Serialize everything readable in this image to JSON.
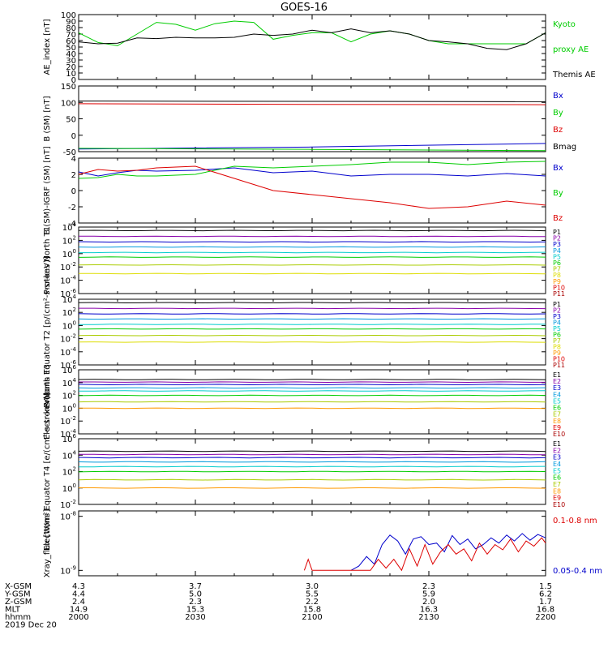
{
  "title": "GOES-16",
  "footer": {
    "rows": [
      {
        "label": "X-GSM",
        "values": [
          "4.3",
          "3.7",
          "3.0",
          "2.3",
          "1.5"
        ]
      },
      {
        "label": "Y-GSM",
        "values": [
          "4.4",
          "5.0",
          "5.5",
          "5.9",
          "6.2"
        ]
      },
      {
        "label": "Z-GSM",
        "values": [
          "2.4",
          "2.3",
          "2.2",
          "2.0",
          "1.7"
        ]
      },
      {
        "label": "MLT",
        "values": [
          "14.9",
          "15.3",
          "15.8",
          "16.3",
          "16.8"
        ]
      },
      {
        "label": "hhmm",
        "values": [
          "2000",
          "2030",
          "2100",
          "2130",
          "2200"
        ]
      }
    ],
    "date": "2019 Dec 20"
  },
  "colors": {
    "black": "#000000",
    "green": "#00cc00",
    "blue": "#0000cc",
    "red": "#dd0000"
  },
  "chart_data": [
    {
      "type": "line",
      "ylabel": "AE_index [nT]",
      "ylim": [
        0,
        100
      ],
      "yticks": [
        "0",
        "10",
        "20",
        "30",
        "40",
        "50",
        "60",
        "70",
        "80",
        "90",
        "100"
      ],
      "legend": [
        {
          "text": "Kyoto",
          "color": "#00cc00"
        },
        {
          "text": "proxy AE",
          "color": "#00cc00"
        },
        {
          "text": "Themis AE",
          "color": "#000000"
        }
      ],
      "series": [
        {
          "name": "Kyoto proxy AE",
          "color": "#00cc00",
          "x": [
            0,
            5,
            10,
            15,
            20,
            25,
            30,
            35,
            40,
            45,
            50,
            55,
            60,
            65,
            70,
            75,
            80,
            85,
            90,
            95,
            100,
            105,
            110,
            115,
            120
          ],
          "y": [
            72,
            57,
            52,
            70,
            88,
            85,
            76,
            86,
            90,
            88,
            62,
            68,
            72,
            72,
            58,
            70,
            75,
            70,
            60,
            55,
            55,
            55,
            55,
            55,
            72
          ]
        },
        {
          "name": "Themis AE",
          "color": "#000000",
          "x": [
            0,
            5,
            10,
            15,
            20,
            25,
            30,
            35,
            40,
            45,
            50,
            55,
            60,
            65,
            70,
            75,
            80,
            85,
            90,
            95,
            100,
            105,
            110,
            115,
            120
          ],
          "y": [
            58,
            55,
            56,
            64,
            63,
            65,
            64,
            64,
            65,
            70,
            68,
            70,
            76,
            72,
            78,
            72,
            75,
            70,
            60,
            58,
            55,
            48,
            46,
            55,
            72
          ]
        }
      ]
    },
    {
      "type": "line",
      "ylabel": "B (SM) [nT]",
      "ylim": [
        -50,
        150
      ],
      "yticks": [
        "-50",
        "0",
        "50",
        "100",
        "150"
      ],
      "legend": [
        {
          "text": "Bx",
          "color": "#0000cc"
        },
        {
          "text": "By",
          "color": "#00cc00"
        },
        {
          "text": "Bz",
          "color": "#dd0000"
        },
        {
          "text": "Bmag",
          "color": "#000000"
        }
      ],
      "series": [
        {
          "name": "Bmag",
          "color": "#000000",
          "x": [
            0,
            60,
            120
          ],
          "y": [
            104,
            103,
            102
          ]
        },
        {
          "name": "Bz",
          "color": "#dd0000",
          "x": [
            0,
            60,
            120
          ],
          "y": [
            96,
            94,
            93
          ]
        },
        {
          "name": "Bx",
          "color": "#0000cc",
          "x": [
            0,
            60,
            120
          ],
          "y": [
            -42,
            -36,
            -25
          ]
        },
        {
          "name": "By",
          "color": "#00cc00",
          "x": [
            0,
            60,
            120
          ],
          "y": [
            -40,
            -43,
            -47
          ]
        }
      ]
    },
    {
      "type": "line",
      "ylabel": "B (SM)-IGRF (SM) [nT]",
      "ylim": [
        -4,
        4
      ],
      "yticks": [
        "-4",
        "-2",
        "0",
        "2",
        "4"
      ],
      "legend": [
        {
          "text": "Bx",
          "color": "#0000cc"
        },
        {
          "text": "By",
          "color": "#00cc00"
        },
        {
          "text": "Bz",
          "color": "#dd0000"
        }
      ],
      "series": [
        {
          "name": "Bx",
          "color": "#0000cc",
          "x": [
            0,
            5,
            10,
            15,
            20,
            30,
            40,
            50,
            60,
            70,
            80,
            90,
            100,
            110,
            120
          ],
          "y": [
            2.3,
            1.8,
            2.2,
            2.5,
            2.4,
            2.5,
            2.8,
            2.2,
            2.4,
            1.8,
            2.0,
            2.0,
            1.8,
            2.1,
            1.8
          ]
        },
        {
          "name": "By",
          "color": "#00cc00",
          "x": [
            0,
            5,
            10,
            15,
            20,
            30,
            40,
            50,
            60,
            70,
            80,
            90,
            100,
            110,
            120
          ],
          "y": [
            1.5,
            1.6,
            2.0,
            1.8,
            1.8,
            2.0,
            3.0,
            2.8,
            3.0,
            3.2,
            3.5,
            3.5,
            3.2,
            3.5,
            3.6
          ]
        },
        {
          "name": "Bz",
          "color": "#dd0000",
          "x": [
            0,
            5,
            10,
            15,
            20,
            30,
            40,
            50,
            60,
            70,
            80,
            90,
            100,
            110,
            120
          ],
          "y": [
            2.0,
            2.6,
            2.4,
            2.5,
            2.8,
            3.0,
            1.5,
            0.0,
            -0.5,
            -1.0,
            -1.5,
            -2.2,
            -2.0,
            -1.3,
            -1.8
          ]
        }
      ]
    },
    {
      "type": "line",
      "ylabel": "Protons North T1",
      "yscale": "log",
      "yticks": [
        "10^-6",
        "10^-4",
        "10^-2",
        "10^0",
        "10^2",
        "10^4"
      ],
      "legend": [
        {
          "text": "P1",
          "color": "#000000"
        },
        {
          "text": "P2",
          "color": "#8800aa"
        },
        {
          "text": "P3",
          "color": "#0000cc"
        },
        {
          "text": "P4",
          "color": "#0099dd"
        },
        {
          "text": "P5",
          "color": "#00cccc"
        },
        {
          "text": "P6",
          "color": "#00cc00"
        },
        {
          "text": "P7",
          "color": "#aacc00"
        },
        {
          "text": "P8",
          "color": "#dddd00"
        },
        {
          "text": "P9",
          "color": "#ff9900"
        },
        {
          "text": "P10",
          "color": "#dd0000"
        },
        {
          "text": "P11",
          "color": "#aa0000"
        }
      ],
      "series": [
        {
          "name": "P1",
          "color": "#000000",
          "level": 3000
        },
        {
          "name": "P2",
          "color": "#8800aa",
          "level": 400
        },
        {
          "name": "P3",
          "color": "#0000cc",
          "level": 60
        },
        {
          "name": "P4",
          "color": "#0099dd",
          "level": 10
        },
        {
          "name": "P5",
          "color": "#00cccc",
          "level": 1.5
        },
        {
          "name": "P6",
          "color": "#00cc00",
          "level": 0.3
        },
        {
          "name": "P7",
          "color": "#aacc00",
          "level": 0.02
        },
        {
          "name": "P8",
          "color": "#dddd00",
          "level": 0.001
        }
      ]
    },
    {
      "type": "line",
      "ylabel": "Protons Equator T2 [p/(cm²-s-sr-keV)]",
      "yscale": "log",
      "yticks": [
        "10^-6",
        "10^-4",
        "10^-2",
        "10^0",
        "10^2",
        "10^4"
      ],
      "legend": [
        {
          "text": "P1",
          "color": "#000000"
        },
        {
          "text": "P2",
          "color": "#8800aa"
        },
        {
          "text": "P3",
          "color": "#0000cc"
        },
        {
          "text": "P4",
          "color": "#0099dd"
        },
        {
          "text": "P5",
          "color": "#00cccc"
        },
        {
          "text": "P6",
          "color": "#00cc00"
        },
        {
          "text": "P7",
          "color": "#aacc00"
        },
        {
          "text": "P8",
          "color": "#dddd00"
        },
        {
          "text": "P9",
          "color": "#ff9900"
        },
        {
          "text": "P10",
          "color": "#dd0000"
        },
        {
          "text": "P11",
          "color": "#aa0000"
        }
      ],
      "series": [
        {
          "name": "P1",
          "color": "#000000",
          "level": 3000
        },
        {
          "name": "P2",
          "color": "#8800aa",
          "level": 400
        },
        {
          "name": "P3",
          "color": "#0000cc",
          "level": 60
        },
        {
          "name": "P4",
          "color": "#0099dd",
          "level": 10
        },
        {
          "name": "P5",
          "color": "#00cccc",
          "level": 1.5
        },
        {
          "name": "P6",
          "color": "#00cc00",
          "level": 0.3
        },
        {
          "name": "P7",
          "color": "#aacc00",
          "level": 0.03
        },
        {
          "name": "P8",
          "color": "#dddd00",
          "level": 0.003
        }
      ]
    },
    {
      "type": "line",
      "ylabel": "Electrons North T3",
      "yscale": "log",
      "yticks": [
        "10^-4",
        "10^-2",
        "10^0",
        "10^2",
        "10^4",
        "10^6"
      ],
      "legend": [
        {
          "text": "E1",
          "color": "#000000"
        },
        {
          "text": "E2",
          "color": "#8800aa"
        },
        {
          "text": "E3",
          "color": "#0000cc"
        },
        {
          "text": "E4",
          "color": "#0099dd"
        },
        {
          "text": "E5",
          "color": "#00cccc"
        },
        {
          "text": "E6",
          "color": "#00cc00"
        },
        {
          "text": "E7",
          "color": "#aacc00"
        },
        {
          "text": "E8",
          "color": "#ff9900"
        },
        {
          "text": "E9",
          "color": "#dd0000"
        },
        {
          "text": "E10",
          "color": "#aa0000"
        }
      ],
      "series": [
        {
          "name": "E1",
          "color": "#000000",
          "level": 30000
        },
        {
          "name": "E2",
          "color": "#8800aa",
          "level": 12000
        },
        {
          "name": "E3",
          "color": "#0000cc",
          "level": 5000
        },
        {
          "name": "E4",
          "color": "#0099dd",
          "level": 1500
        },
        {
          "name": "E5",
          "color": "#00cccc",
          "level": 500
        },
        {
          "name": "E6",
          "color": "#00cc00",
          "level": 100
        },
        {
          "name": "E7",
          "color": "#aacc00",
          "level": 10
        },
        {
          "name": "E8",
          "color": "#ff9900",
          "level": 1
        }
      ]
    },
    {
      "type": "line",
      "ylabel": "Electrons Equator T4 [e/(cm²-s-sr-keV)]",
      "yscale": "log",
      "yticks": [
        "10^-2",
        "10^0",
        "10^2",
        "10^4",
        "10^6"
      ],
      "legend": [
        {
          "text": "E1",
          "color": "#000000"
        },
        {
          "text": "E2",
          "color": "#8800aa"
        },
        {
          "text": "E3",
          "color": "#0000cc"
        },
        {
          "text": "E4",
          "color": "#0099dd"
        },
        {
          "text": "E5",
          "color": "#00cccc"
        },
        {
          "text": "E6",
          "color": "#00cc00"
        },
        {
          "text": "E7",
          "color": "#aacc00"
        },
        {
          "text": "E8",
          "color": "#ff9900"
        },
        {
          "text": "E9",
          "color": "#dd0000"
        },
        {
          "text": "E10",
          "color": "#aa0000"
        }
      ],
      "series": [
        {
          "name": "E1",
          "color": "#000000",
          "level": 30000
        },
        {
          "name": "E2",
          "color": "#8800aa",
          "level": 12000
        },
        {
          "name": "E3",
          "color": "#0000cc",
          "level": 5000
        },
        {
          "name": "E4",
          "color": "#0099dd",
          "level": 1500
        },
        {
          "name": "E5",
          "color": "#00cccc",
          "level": 400
        },
        {
          "name": "E6",
          "color": "#00cc00",
          "level": 100
        },
        {
          "name": "E7",
          "color": "#aacc00",
          "level": 10
        },
        {
          "name": "E8",
          "color": "#ff9900",
          "level": 1
        }
      ]
    },
    {
      "type": "line",
      "ylabel": "Xray_flux [W/m²]",
      "yscale": "log",
      "yticks": [
        "10^-9",
        "10^-8"
      ],
      "legend": [
        {
          "text": "0.1-0.8 nm",
          "color": "#dd0000"
        },
        {
          "text": "0.05-0.4 nm",
          "color": "#0000cc"
        }
      ],
      "series": [
        {
          "name": "0.05-0.4 nm",
          "color": "#0000cc",
          "x": [
            70,
            72,
            74,
            76,
            78,
            80,
            82,
            84,
            86,
            88,
            90,
            92,
            94,
            96,
            98,
            100,
            102,
            104,
            106,
            108,
            110,
            112,
            114,
            116,
            118,
            120
          ],
          "y": [
            1e-09,
            1.2e-09,
            1.8e-09,
            1.3e-09,
            3e-09,
            4.5e-09,
            3.5e-09,
            2e-09,
            3.8e-09,
            4.2e-09,
            3e-09,
            3.2e-09,
            2.2e-09,
            4.4e-09,
            3e-09,
            3.8e-09,
            2.5e-09,
            3e-09,
            4e-09,
            3.2e-09,
            4.5e-09,
            3.5e-09,
            4.8e-09,
            3.6e-09,
            4.6e-09,
            4e-09
          ]
        },
        {
          "name": "0.1-0.8 nm",
          "color": "#dd0000",
          "x": [
            58,
            59,
            60,
            75,
            77,
            79,
            81,
            83,
            85,
            87,
            89,
            91,
            93,
            95,
            97,
            99,
            101,
            103,
            105,
            107,
            109,
            111,
            113,
            115,
            117,
            119,
            120
          ],
          "y": [
            1e-09,
            1.6e-09,
            1e-09,
            1e-09,
            1.6e-09,
            1.1e-09,
            1.6e-09,
            1e-09,
            2.5e-09,
            1.2e-09,
            3e-09,
            1.3e-09,
            2.2e-09,
            3e-09,
            2e-09,
            2.5e-09,
            1.5e-09,
            3.2e-09,
            2e-09,
            3e-09,
            2.4e-09,
            3.8e-09,
            2.2e-09,
            3.5e-09,
            2.8e-09,
            4e-09,
            3.2e-09
          ]
        }
      ]
    }
  ]
}
